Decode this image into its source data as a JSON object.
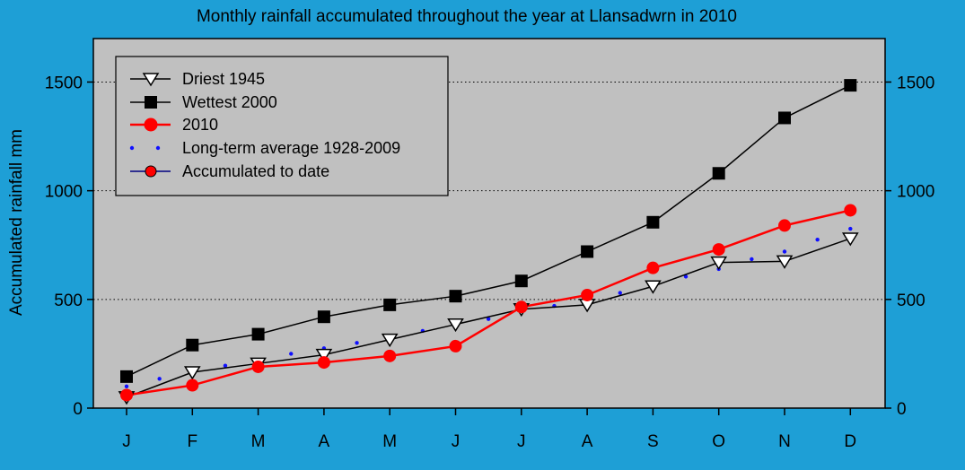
{
  "chart_data": {
    "type": "line",
    "title": "Monthly rainfall accumulated throughout the year at Llansadwrn in 2010",
    "ylabel": "Accumulated rainfall mm",
    "xlabel": "",
    "categories": [
      "J",
      "F",
      "M",
      "A",
      "M",
      "J",
      "J",
      "A",
      "S",
      "O",
      "N",
      "D"
    ],
    "ylim": [
      0,
      1700
    ],
    "yticks": [
      0,
      500,
      1000,
      1500
    ],
    "grid": "horizontal dotted",
    "legend_position": "top-left",
    "series": [
      {
        "name": "Driest 1945",
        "marker": "triangle-down-open",
        "color": "#000000",
        "values": [
          50,
          165,
          205,
          245,
          315,
          385,
          455,
          475,
          560,
          670,
          675,
          780
        ]
      },
      {
        "name": "Wettest 2000",
        "marker": "square-filled",
        "color": "#000000",
        "values": [
          145,
          290,
          340,
          420,
          475,
          515,
          585,
          720,
          855,
          1080,
          1335,
          1485
        ]
      },
      {
        "name": "2010",
        "marker": "circle-filled",
        "color": "#ff0000",
        "values": [
          60,
          105,
          190,
          210,
          240,
          285,
          465,
          520,
          645,
          730,
          840,
          910
        ]
      }
    ],
    "average_series": {
      "name": "Long-term average 1928-2009",
      "style": "dotted",
      "color": "#1010ff",
      "x": [
        0,
        0.5,
        1,
        1.5,
        2,
        2.5,
        3,
        3.5,
        4,
        4.5,
        5,
        5.5,
        6,
        6.5,
        7,
        7.5,
        8,
        8.5,
        9,
        9.5,
        10,
        10.5,
        11
      ],
      "values": [
        100,
        135,
        165,
        195,
        220,
        250,
        275,
        300,
        330,
        355,
        380,
        410,
        440,
        470,
        500,
        530,
        565,
        605,
        640,
        685,
        720,
        775,
        825
      ]
    },
    "accumulated_label": "Accumulated to date"
  },
  "colors": {
    "background": "#1e9fd6",
    "plot_area": "#c0c0c0"
  }
}
